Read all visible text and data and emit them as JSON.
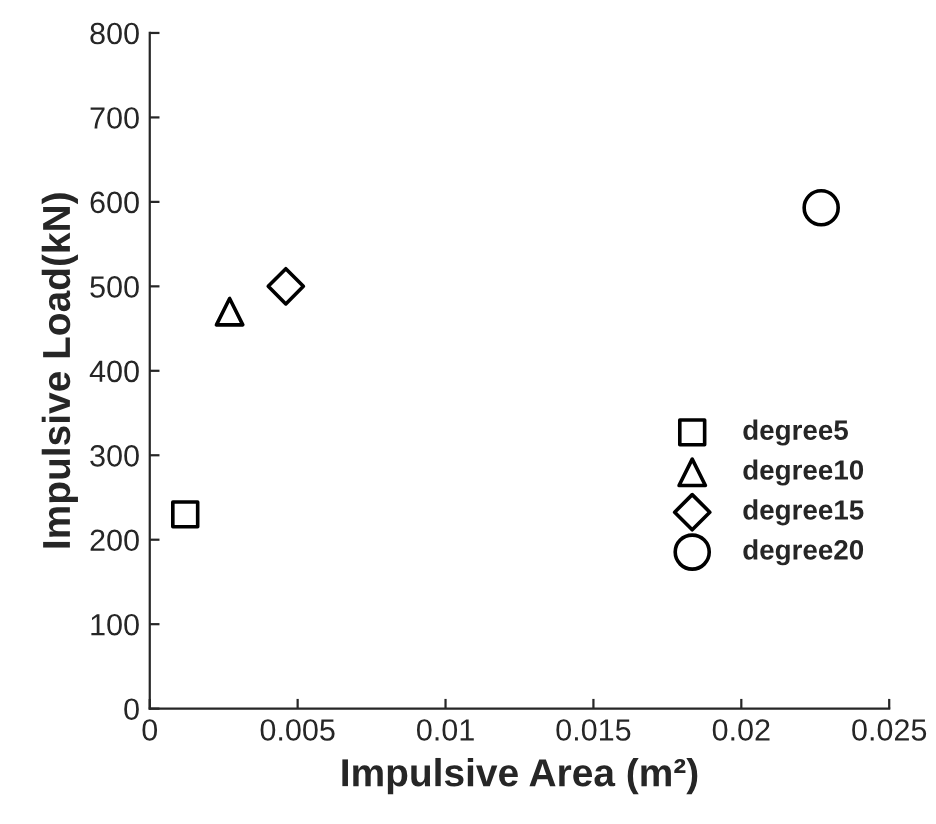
{
  "chart_data": {
    "type": "scatter",
    "xlabel": "Impulsive Area (m²)",
    "ylabel": "Impulsive Load(kN)",
    "xlim": [
      0,
      0.025
    ],
    "xticks": [
      0,
      0.005,
      0.01,
      0.015,
      0.02,
      0.025
    ],
    "ylim": [
      0,
      800
    ],
    "yticks": [
      0,
      100,
      200,
      300,
      400,
      500,
      600,
      700,
      800
    ],
    "grid": false,
    "legend": "right",
    "series": [
      {
        "name": "degree5",
        "color": "#000000",
        "marker": "square",
        "x": [
          0.0012
        ],
        "values": [
          230
        ]
      },
      {
        "name": "degree10",
        "color": "#000000",
        "marker": "triangle",
        "x": [
          0.0027
        ],
        "values": [
          470
        ]
      },
      {
        "name": "degree15",
        "color": "#000000",
        "marker": "diamond",
        "x": [
          0.0046
        ],
        "values": [
          500
        ]
      },
      {
        "name": "degree20",
        "color": "#000000",
        "marker": "circle",
        "x": [
          0.0227
        ],
        "values": [
          593
        ]
      }
    ]
  }
}
